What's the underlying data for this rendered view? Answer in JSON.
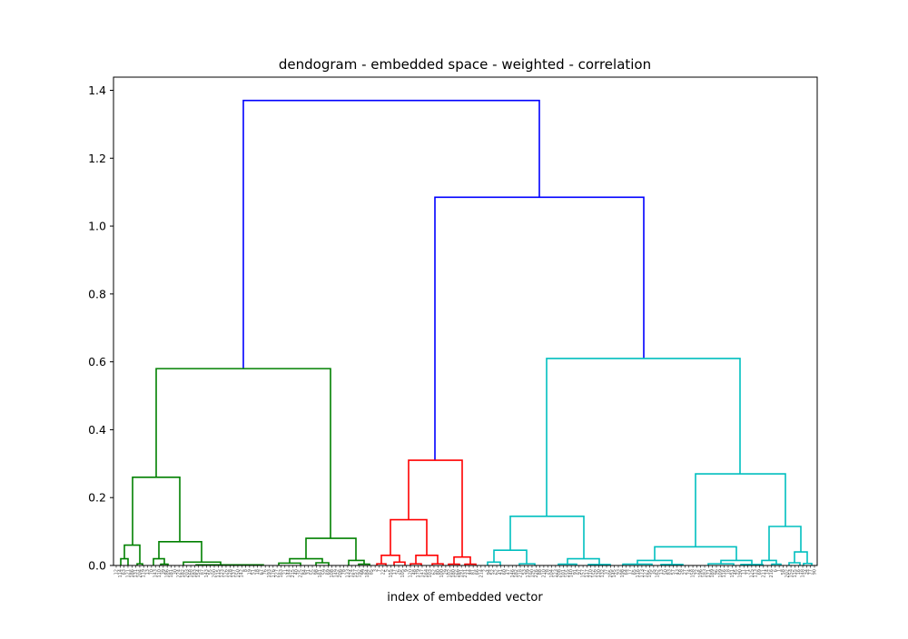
{
  "chart_data": {
    "type": "dendrogram",
    "title": "dendogram - embedded space - weighted - correlation",
    "xlabel": "index of embedded vector",
    "ylabel": "",
    "ylim": [
      0,
      1.42
    ],
    "yticks": [
      "0.0",
      "0.2",
      "0.4",
      "0.6",
      "0.8",
      "1.0",
      "1.2",
      "1.4"
    ],
    "ytick_values": [
      0,
      0.2,
      0.4,
      0.6,
      0.8,
      1.0,
      1.2,
      1.4
    ],
    "grid": false,
    "colors": {
      "top": "#0000ff",
      "cluster_1": "#008000",
      "cluster_2": "#ff0000",
      "cluster_3": "#00bfbf"
    },
    "leaf_labels": [
      "12",
      "114",
      "63",
      "121",
      "186",
      "131",
      "204",
      "119",
      "13",
      "70",
      "143",
      "110",
      "39",
      "186",
      "181",
      "30",
      "224",
      "182",
      "203",
      "168",
      "183",
      "154",
      "87",
      "143",
      "55",
      "200",
      "115",
      "123",
      "126",
      "128",
      "137",
      "150",
      "142",
      "8",
      "19",
      "51",
      "18",
      "67",
      "76",
      "193",
      "176",
      "227",
      "163",
      "21",
      "144",
      "215",
      "40",
      "225",
      "84",
      "31",
      "55",
      "98",
      "161",
      "59",
      "69",
      "108",
      "149",
      "206",
      "78",
      "133",
      "124",
      "157",
      "192",
      "99",
      "184",
      "85",
      "3",
      "7",
      "22",
      "5",
      "155",
      "17",
      "26",
      "105",
      "9",
      "120",
      "48",
      "179",
      "147",
      "164",
      "103",
      "62",
      "80",
      "100",
      "29",
      "102",
      "180",
      "166",
      "191",
      "231",
      "44",
      "81",
      "66",
      "214",
      "2",
      "94",
      "52",
      "62",
      "41",
      "60",
      "47",
      "146",
      "182",
      "218",
      "53",
      "139",
      "190",
      "226",
      "88",
      "210",
      "28",
      "104",
      "123",
      "208",
      "101",
      "155",
      "140",
      "91",
      "97",
      "157",
      "117",
      "210",
      "156",
      "130",
      "132",
      "37",
      "205",
      "145",
      "93",
      "198",
      "64",
      "17",
      "65",
      "116",
      "173",
      "127",
      "195",
      "35",
      "162",
      "13",
      "50",
      "83",
      "57",
      "43",
      "58",
      "27",
      "74",
      "158",
      "72",
      "196",
      "183",
      "171",
      "189",
      "96",
      "109",
      "116",
      "18",
      "151",
      "45",
      "190",
      "11",
      "71",
      "125",
      "113",
      "69",
      "211",
      "14",
      "216",
      "6",
      "1",
      "58",
      "202",
      "154",
      "115",
      "16",
      "148",
      "34",
      "77",
      "90"
    ],
    "links": [
      {
        "xl": 268,
        "xr": 594,
        "h": 1.37,
        "hl": 0.58,
        "hr": 1.085,
        "color": "top"
      },
      {
        "xl": 479,
        "xr": 709,
        "h": 1.085,
        "hl": 0.31,
        "hr": 0.61,
        "color": "top"
      },
      {
        "xl": 172,
        "xr": 364,
        "h": 0.58,
        "hl": 0.26,
        "hr": 0.08,
        "color": "cluster_1"
      },
      {
        "xl": 146,
        "xr": 198,
        "h": 0.26,
        "hl": 0.06,
        "hr": 0.07,
        "color": "cluster_1"
      },
      {
        "xl": 137,
        "xr": 154,
        "h": 0.06,
        "hl": 0.02,
        "hr": 0.005,
        "color": "cluster_1"
      },
      {
        "xl": 133,
        "xr": 141,
        "h": 0.02,
        "hl": 0,
        "hr": 0,
        "color": "cluster_1"
      },
      {
        "xl": 151,
        "xr": 157,
        "h": 0.005,
        "hl": 0,
        "hr": 0,
        "color": "cluster_1"
      },
      {
        "xl": 175,
        "xr": 222,
        "h": 0.07,
        "hl": 0.02,
        "hr": 0.01,
        "color": "cluster_1"
      },
      {
        "xl": 169,
        "xr": 181,
        "h": 0.02,
        "hl": 0,
        "hr": 0.004,
        "color": "cluster_1"
      },
      {
        "xl": 177,
        "xr": 185,
        "h": 0.004,
        "hl": 0,
        "hr": 0,
        "color": "cluster_1"
      },
      {
        "xl": 202,
        "xr": 243,
        "h": 0.01,
        "hl": 0,
        "hr": 0.002,
        "color": "cluster_1"
      },
      {
        "xl": 216,
        "xr": 290,
        "h": 0.002,
        "hl": 0,
        "hr": 0,
        "color": "cluster_1"
      },
      {
        "xl": 337,
        "xr": 392,
        "h": 0.08,
        "hl": 0.02,
        "hr": 0.015,
        "color": "cluster_1"
      },
      {
        "xl": 319,
        "xr": 355,
        "h": 0.02,
        "hl": 0.007,
        "hr": 0.008,
        "color": "cluster_1"
      },
      {
        "xl": 307,
        "xr": 331,
        "h": 0.007,
        "hl": 0,
        "hr": 0,
        "color": "cluster_1"
      },
      {
        "xl": 348,
        "xr": 362,
        "h": 0.008,
        "hl": 0,
        "hr": 0,
        "color": "cluster_1"
      },
      {
        "xl": 384,
        "xr": 401,
        "h": 0.015,
        "hl": 0,
        "hr": 0.004,
        "color": "cluster_1"
      },
      {
        "xl": 395,
        "xr": 407,
        "h": 0.004,
        "hl": 0,
        "hr": 0,
        "color": "cluster_1"
      },
      {
        "xl": 450,
        "xr": 509,
        "h": 0.31,
        "hl": 0.135,
        "hr": 0.025,
        "color": "cluster_2"
      },
      {
        "xl": 430,
        "xr": 470,
        "h": 0.135,
        "hl": 0.03,
        "hr": 0.03,
        "color": "cluster_2"
      },
      {
        "xl": 420,
        "xr": 440,
        "h": 0.03,
        "hl": 0.005,
        "hr": 0.01,
        "color": "cluster_2"
      },
      {
        "xl": 415,
        "xr": 425,
        "h": 0.005,
        "hl": 0,
        "hr": 0,
        "color": "cluster_2"
      },
      {
        "xl": 434,
        "xr": 446,
        "h": 0.01,
        "hl": 0,
        "hr": 0,
        "color": "cluster_2"
      },
      {
        "xl": 458,
        "xr": 482,
        "h": 0.03,
        "hl": 0.005,
        "hr": 0.005,
        "color": "cluster_2"
      },
      {
        "xl": 452,
        "xr": 464,
        "h": 0.005,
        "hl": 0,
        "hr": 0,
        "color": "cluster_2"
      },
      {
        "xl": 476,
        "xr": 488,
        "h": 0.005,
        "hl": 0,
        "hr": 0,
        "color": "cluster_2"
      },
      {
        "xl": 500,
        "xr": 518,
        "h": 0.025,
        "hl": 0.004,
        "hr": 0.004,
        "color": "cluster_2"
      },
      {
        "xl": 494,
        "xr": 506,
        "h": 0.004,
        "hl": 0,
        "hr": 0,
        "color": "cluster_2"
      },
      {
        "xl": 512,
        "xr": 524,
        "h": 0.004,
        "hl": 0,
        "hr": 0,
        "color": "cluster_2"
      },
      {
        "xl": 602,
        "xr": 815,
        "h": 0.61,
        "hl": 0.145,
        "hr": 0.27,
        "color": "cluster_3"
      },
      {
        "xl": 562,
        "xr": 643,
        "h": 0.145,
        "hl": 0.045,
        "hr": 0.02,
        "color": "cluster_3"
      },
      {
        "xl": 544,
        "xr": 580,
        "h": 0.045,
        "hl": 0.01,
        "hr": 0.005,
        "color": "cluster_3"
      },
      {
        "xl": 537,
        "xr": 551,
        "h": 0.01,
        "hl": 0,
        "hr": 0,
        "color": "cluster_3"
      },
      {
        "xl": 572,
        "xr": 589,
        "h": 0.005,
        "hl": 0,
        "hr": 0,
        "color": "cluster_3"
      },
      {
        "xl": 625,
        "xr": 660,
        "h": 0.02,
        "hl": 0.004,
        "hr": 0.003,
        "color": "cluster_3"
      },
      {
        "xl": 615,
        "xr": 635,
        "h": 0.004,
        "hl": 0,
        "hr": 0,
        "color": "cluster_3"
      },
      {
        "xl": 648,
        "xr": 672,
        "h": 0.003,
        "hl": 0,
        "hr": 0,
        "color": "cluster_3"
      },
      {
        "xl": 766,
        "xr": 865,
        "h": 0.27,
        "hl": 0.055,
        "hr": 0.115,
        "color": "cluster_3"
      },
      {
        "xl": 721,
        "xr": 811,
        "h": 0.055,
        "hl": 0.015,
        "hr": 0.015,
        "color": "cluster_3"
      },
      {
        "xl": 702,
        "xr": 740,
        "h": 0.015,
        "hl": 0.004,
        "hr": 0.003,
        "color": "cluster_3"
      },
      {
        "xl": 686,
        "xr": 718,
        "h": 0.004,
        "hl": 0,
        "hr": 0,
        "color": "cluster_3"
      },
      {
        "xl": 728,
        "xr": 752,
        "h": 0.003,
        "hl": 0,
        "hr": 0,
        "color": "cluster_3"
      },
      {
        "xl": 794,
        "xr": 828,
        "h": 0.015,
        "hl": 0.005,
        "hr": 0.003,
        "color": "cluster_3"
      },
      {
        "xl": 780,
        "xr": 808,
        "h": 0.005,
        "hl": 0,
        "hr": 0,
        "color": "cluster_3"
      },
      {
        "xl": 816,
        "xr": 840,
        "h": 0.003,
        "hl": 0,
        "hr": 0,
        "color": "cluster_3"
      },
      {
        "xl": 847,
        "xr": 882,
        "h": 0.115,
        "hl": 0.015,
        "hr": 0.04,
        "color": "cluster_3"
      },
      {
        "xl": 839,
        "xr": 855,
        "h": 0.015,
        "hl": 0,
        "hr": 0.004,
        "color": "cluster_3"
      },
      {
        "xl": 850,
        "xr": 860,
        "h": 0.004,
        "hl": 0,
        "hr": 0,
        "color": "cluster_3"
      },
      {
        "xl": 875,
        "xr": 889,
        "h": 0.04,
        "hl": 0.008,
        "hr": 0.006,
        "color": "cluster_3"
      },
      {
        "xl": 869,
        "xr": 881,
        "h": 0.008,
        "hl": 0,
        "hr": 0,
        "color": "cluster_3"
      },
      {
        "xl": 885,
        "xr": 894,
        "h": 0.006,
        "hl": 0,
        "hr": 0,
        "color": "cluster_3"
      }
    ]
  }
}
